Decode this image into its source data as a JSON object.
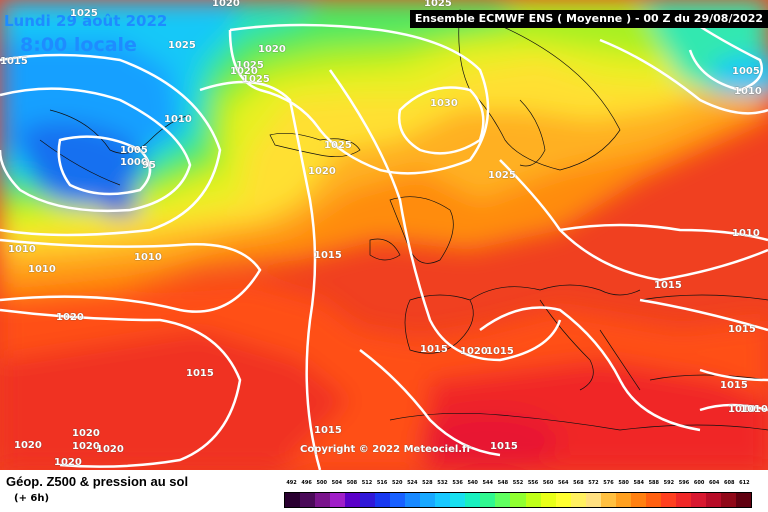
{
  "header": {
    "title": "Ensemble ECMWF ENS  ( Moyenne )  -  00 Z du 29/08/2022"
  },
  "validity": {
    "date": "Lundi 29 août 2022",
    "time": "8:00 locale"
  },
  "copyright": "Copyright © 2022 Meteociel.fr",
  "footer": {
    "title": "Géop. Z500 & pression au sol",
    "subtitle": "(+ 6h)"
  },
  "scale": {
    "ticks": [
      "492",
      "496",
      "500",
      "504",
      "508",
      "512",
      "516",
      "520",
      "524",
      "528",
      "532",
      "536",
      "540",
      "544",
      "548",
      "552",
      "556",
      "560",
      "564",
      "568",
      "572",
      "576",
      "580",
      "584",
      "588",
      "592",
      "596",
      "600",
      "604",
      "608",
      "612"
    ],
    "colors": [
      "#2a0030",
      "#4a0a58",
      "#7a148c",
      "#a01ec8",
      "#5a00c8",
      "#3018d8",
      "#1838f0",
      "#1860ff",
      "#1888ff",
      "#18a8ff",
      "#18c8ff",
      "#18e0f0",
      "#18f0c0",
      "#30f890",
      "#60ff60",
      "#90ff30",
      "#c0ff18",
      "#e8ff18",
      "#ffff30",
      "#fff060",
      "#ffe080",
      "#ffc040",
      "#ffa020",
      "#ff8010",
      "#ff6010",
      "#ff4020",
      "#f02828",
      "#d81830",
      "#b80c28",
      "#900818",
      "#600010"
    ]
  },
  "isobars": [
    {
      "text": "1020"
    },
    {
      "text": "1025"
    },
    {
      "text": "1015"
    },
    {
      "text": "1025"
    },
    {
      "text": "1020"
    },
    {
      "text": "1025"
    },
    {
      "text": "1025"
    },
    {
      "text": "1025"
    },
    {
      "text": "1020"
    },
    {
      "text": "1010"
    },
    {
      "text": "1005"
    },
    {
      "text": "1000"
    },
    {
      "text": "95"
    },
    {
      "text": "1030"
    },
    {
      "text": "1025"
    },
    {
      "text": "1020"
    },
    {
      "text": "1025"
    },
    {
      "text": "1010"
    },
    {
      "text": "1010"
    },
    {
      "text": "1010"
    },
    {
      "text": "1015"
    },
    {
      "text": "1020"
    },
    {
      "text": "1010"
    },
    {
      "text": "1015"
    },
    {
      "text": "1015"
    },
    {
      "text": "1015"
    },
    {
      "text": "1020"
    },
    {
      "text": "1015"
    },
    {
      "text": "1015"
    },
    {
      "text": "1015"
    },
    {
      "text": "1010"
    },
    {
      "text": "1010"
    },
    {
      "text": "1015"
    },
    {
      "text": "1015"
    },
    {
      "text": "1020"
    },
    {
      "text": "1020"
    },
    {
      "text": "1020"
    },
    {
      "text": "1020"
    },
    {
      "text": "1020"
    },
    {
      "text": "1005"
    },
    {
      "text": "1010"
    }
  ]
}
